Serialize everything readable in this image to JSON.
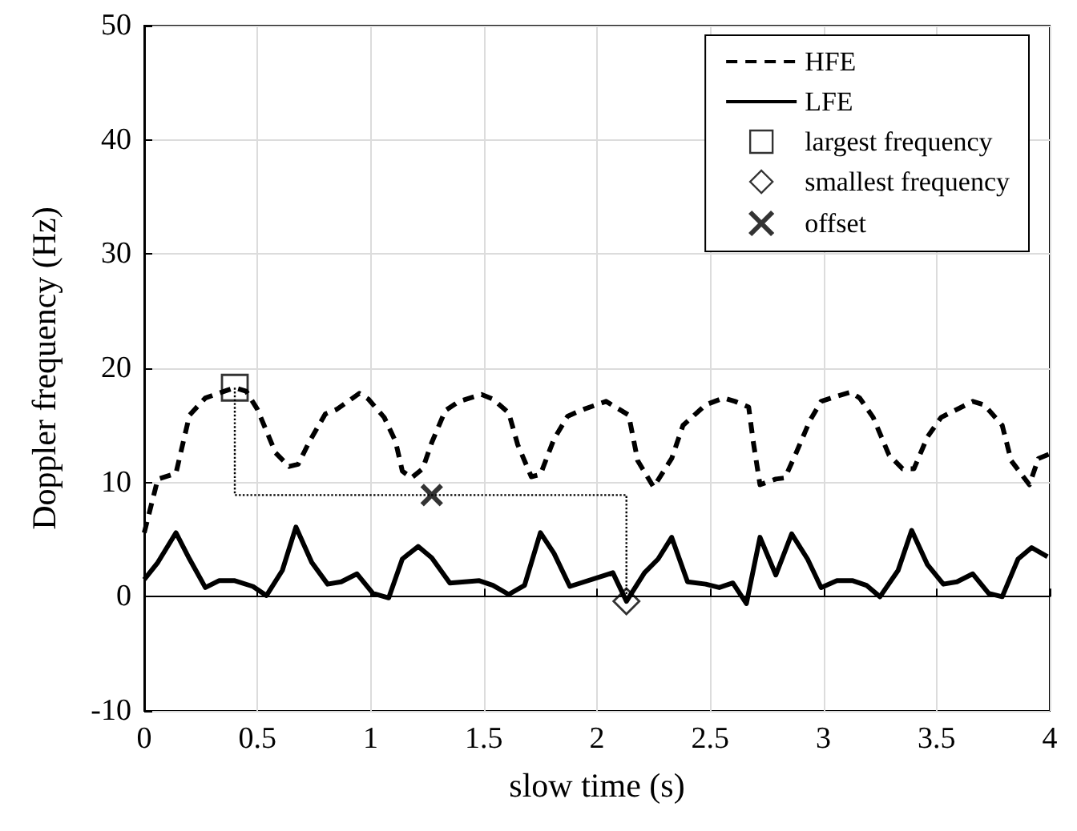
{
  "chart_data": {
    "type": "line",
    "xlabel": "slow time (s)",
    "ylabel": "Doppler frequency (Hz)",
    "xlim": [
      0,
      4
    ],
    "xticks": [
      0,
      0.5,
      1,
      1.5,
      2,
      2.5,
      3,
      3.5,
      4
    ],
    "ylim": [
      -10,
      50
    ],
    "yticks": [
      -10,
      0,
      10,
      20,
      30,
      40,
      50
    ],
    "grid": true,
    "legend": "top right",
    "series": [
      {
        "name": "HFE",
        "color": "#000000",
        "line_style": "dashed",
        "marker": "none",
        "x": [
          0,
          0.06,
          0.14,
          0.2,
          0.27,
          0.37,
          0.4,
          0.45,
          0.5,
          0.58,
          0.64,
          0.68,
          0.73,
          0.8,
          0.85,
          0.95,
          0.99,
          1.06,
          1.11,
          1.14,
          1.18,
          1.23,
          1.27,
          1.33,
          1.39,
          1.49,
          1.54,
          1.61,
          1.65,
          1.71,
          1.75,
          1.81,
          1.87,
          1.94,
          2.04,
          2.14,
          2.18,
          2.25,
          2.33,
          2.38,
          2.48,
          2.56,
          2.61,
          2.67,
          2.69,
          2.72,
          2.79,
          2.83,
          2.88,
          2.94,
          2.99,
          3.05,
          3.12,
          3.16,
          3.22,
          3.29,
          3.35,
          3.4,
          3.46,
          3.52,
          3.66,
          3.71,
          3.79,
          3.83,
          3.91,
          3.95,
          4
        ],
        "values": [
          5.6,
          10.3,
          10.8,
          15.9,
          17.4,
          18.1,
          18.3,
          18.0,
          16.4,
          12.6,
          11.4,
          11.6,
          13.6,
          16.0,
          16.4,
          17.8,
          17.3,
          15.7,
          13.6,
          11.0,
          10.4,
          11.2,
          13.5,
          16.3,
          17.1,
          17.7,
          17.3,
          16.1,
          13.3,
          10.5,
          10.7,
          13.8,
          15.8,
          16.4,
          17.1,
          15.9,
          11.9,
          9.6,
          12.1,
          15.0,
          16.8,
          17.4,
          17.1,
          16.6,
          13.6,
          9.8,
          10.3,
          10.4,
          12.6,
          15.4,
          17.1,
          17.5,
          17.9,
          17.4,
          15.7,
          12.4,
          11.2,
          11.2,
          14.0,
          15.7,
          17.1,
          16.8,
          15.0,
          11.9,
          9.8,
          12.1,
          12.5
        ]
      },
      {
        "name": "LFE",
        "color": "#000000",
        "line_style": "solid",
        "marker": "none",
        "x": [
          0,
          0.06,
          0.14,
          0.2,
          0.27,
          0.33,
          0.4,
          0.48,
          0.54,
          0.61,
          0.67,
          0.74,
          0.81,
          0.87,
          0.94,
          1.01,
          1.08,
          1.14,
          1.21,
          1.27,
          1.35,
          1.48,
          1.54,
          1.61,
          1.68,
          1.75,
          1.81,
          1.88,
          2.04,
          2.07,
          2.13,
          2.21,
          2.27,
          2.33,
          2.4,
          2.48,
          2.54,
          2.6,
          2.66,
          2.72,
          2.79,
          2.86,
          2.93,
          2.99,
          3.06,
          3.13,
          3.19,
          3.25,
          3.33,
          3.39,
          3.46,
          3.53,
          3.59,
          3.66,
          3.73,
          3.79,
          3.86,
          3.92,
          3.99
        ],
        "values": [
          1.5,
          3.0,
          5.6,
          3.3,
          0.8,
          1.4,
          1.4,
          0.9,
          0.1,
          2.3,
          6.1,
          3.0,
          1.1,
          1.3,
          2.0,
          0.3,
          -0.1,
          3.3,
          4.4,
          3.4,
          1.2,
          1.4,
          1.0,
          0.2,
          1.0,
          5.6,
          3.8,
          0.9,
          1.9,
          2.1,
          -0.4,
          2.1,
          3.3,
          5.2,
          1.3,
          1.1,
          0.8,
          1.2,
          -0.6,
          5.2,
          1.9,
          5.5,
          3.3,
          0.8,
          1.4,
          1.4,
          1.0,
          0.0,
          2.3,
          5.8,
          2.8,
          1.1,
          1.3,
          2.0,
          0.3,
          0.0,
          3.3,
          4.3,
          3.5
        ]
      },
      {
        "name": "largest frequency",
        "type": "scatter",
        "color": "#000000",
        "marker": "square",
        "x": [
          0.4
        ],
        "values": [
          18.3
        ]
      },
      {
        "name": "smallest frequency",
        "type": "scatter",
        "color": "#000000",
        "marker": "diamond",
        "x": [
          2.13
        ],
        "values": [
          -0.4
        ]
      },
      {
        "name": "offset",
        "type": "scatter",
        "color": "#000000",
        "marker": "cross",
        "x": [
          1.27
        ],
        "values": [
          8.9
        ]
      },
      {
        "color": "#000000",
        "line_style": "dotted",
        "marker": "none",
        "x": [
          0.4,
          0.4,
          2.13,
          2.13
        ],
        "values": [
          18.3,
          8.9,
          8.9,
          -0.4
        ]
      }
    ]
  }
}
